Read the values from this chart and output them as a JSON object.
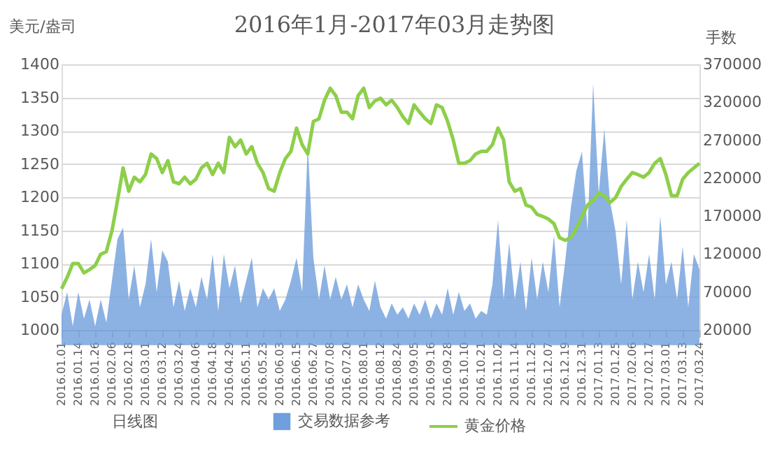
{
  "chart_data": {
    "type": "line",
    "title": "2016年1月-2017年03月走势图",
    "ylabel": "美元/盎司",
    "y2label": "手数",
    "categories": [
      "2016.01.01",
      null,
      null,
      "2016.01.14",
      null,
      null,
      "2016.01.26",
      null,
      null,
      "2016.02.06",
      null,
      null,
      "2016.02.18",
      null,
      null,
      "2016.03.01",
      null,
      null,
      "2016.03.12",
      null,
      null,
      "2016.03.24",
      null,
      null,
      "2016.04.06",
      null,
      null,
      "2016.04.18",
      null,
      null,
      "2016.04.29",
      null,
      null,
      "2016.05.11",
      null,
      null,
      "2016.05.23",
      null,
      null,
      "2016.06.03",
      null,
      null,
      "2016.06.15",
      null,
      null,
      "2016.06.27",
      null,
      null,
      "2016.07.08",
      null,
      null,
      "2016.07.20",
      null,
      null,
      "2016.08.01",
      null,
      null,
      "2016.08.12",
      null,
      null,
      "2016.08.24",
      null,
      null,
      "2016.09.05",
      null,
      null,
      "2016.09.16",
      null,
      null,
      "2016.09.28",
      null,
      null,
      "2016.10.10",
      null,
      null,
      "2016.10.21",
      null,
      null,
      "2016.11.02",
      null,
      null,
      "2016.11.14",
      null,
      null,
      "2016.11.25",
      null,
      null,
      "2016.12.07",
      null,
      null,
      "2016.12.19",
      null,
      null,
      "2016.12.31",
      null,
      null,
      "2017.01.13",
      null,
      null,
      "2017.01.25",
      null,
      null,
      "2017.02.06",
      null,
      null,
      "2017.02.17",
      null,
      null,
      "2017.03.01",
      null,
      null,
      "2017.03.13",
      null,
      null,
      "2017.03.24"
    ],
    "series": [
      {
        "name": "交易数据参考",
        "type": "area",
        "axis": "y2",
        "color": "#6f9fdc",
        "values": [
          40000,
          70000,
          25000,
          70000,
          35000,
          60000,
          25000,
          60000,
          30000,
          85000,
          140000,
          155000,
          60000,
          105000,
          50000,
          80000,
          140000,
          70000,
          125000,
          110000,
          50000,
          85000,
          45000,
          75000,
          50000,
          90000,
          60000,
          120000,
          45000,
          120000,
          75000,
          105000,
          55000,
          85000,
          115000,
          50000,
          75000,
          60000,
          75000,
          45000,
          60000,
          85000,
          115000,
          70000,
          265000,
          115000,
          60000,
          105000,
          60000,
          90000,
          60000,
          80000,
          50000,
          80000,
          60000,
          45000,
          85000,
          50000,
          35000,
          55000,
          40000,
          50000,
          35000,
          55000,
          40000,
          60000,
          35000,
          55000,
          40000,
          75000,
          40000,
          70000,
          45000,
          55000,
          35000,
          45000,
          40000,
          80000,
          165000,
          60000,
          135000,
          60000,
          110000,
          45000,
          115000,
          60000,
          110000,
          70000,
          145000,
          50000,
          110000,
          180000,
          230000,
          255000,
          150000,
          345000,
          200000,
          285000,
          190000,
          150000,
          80000,
          165000,
          60000,
          110000,
          70000,
          120000,
          60000,
          170000,
          80000,
          110000,
          60000,
          130000,
          50000,
          120000,
          100000
        ]
      },
      {
        "name": "黄金价格",
        "color": "#8dcf4a",
        "values": [
          1062,
          1079,
          1100,
          1100,
          1086,
          1091,
          1097,
          1114,
          1118,
          1149,
          1195,
          1244,
          1209,
          1230,
          1223,
          1234,
          1265,
          1258,
          1237,
          1255,
          1223,
          1220,
          1230,
          1220,
          1227,
          1244,
          1251,
          1234,
          1251,
          1237,
          1290,
          1276,
          1286,
          1265,
          1276,
          1251,
          1237,
          1213,
          1209,
          1237,
          1258,
          1269,
          1304,
          1279,
          1265,
          1314,
          1318,
          1346,
          1364,
          1353,
          1328,
          1328,
          1318,
          1353,
          1364,
          1335,
          1345,
          1349,
          1339,
          1346,
          1335,
          1321,
          1311,
          1339,
          1328,
          1318,
          1311,
          1339,
          1335,
          1314,
          1286,
          1251,
          1251,
          1255,
          1265,
          1269,
          1269,
          1279,
          1304,
          1286,
          1223,
          1209,
          1213,
          1188,
          1185,
          1174,
          1171,
          1167,
          1160,
          1139,
          1135,
          1139,
          1153,
          1171,
          1188,
          1195,
          1206,
          1202,
          1192,
          1199,
          1216,
          1227,
          1237,
          1234,
          1230,
          1237,
          1251,
          1258,
          1234,
          1202,
          1202,
          1227,
          1237,
          1244,
          1251
        ]
      }
    ],
    "ylim": [
      1000,
      1400
    ],
    "yticks": [
      1000,
      1050,
      1100,
      1150,
      1200,
      1250,
      1300,
      1350,
      1400
    ],
    "y2lim": [
      20000,
      370000
    ],
    "y2ticks": [
      20000,
      70000,
      120000,
      170000,
      220000,
      270000,
      320000,
      370000
    ],
    "grid": "y",
    "legend": "bottom",
    "annotations": [
      "日线图"
    ]
  }
}
